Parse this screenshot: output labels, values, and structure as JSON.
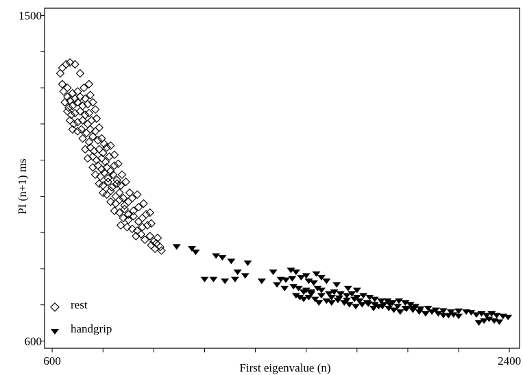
{
  "chart_data": {
    "type": "scatter",
    "xlabel": "First eigenvalue (n)",
    "ylabel": "PI (n+1) ms",
    "xlim": [
      570,
      2440
    ],
    "ylim": [
      580,
      1520
    ],
    "x_ticks": [
      600,
      800,
      1000,
      1200,
      1400,
      1600,
      1800,
      2000,
      2200,
      2400
    ],
    "y_ticks": [
      600,
      700,
      800,
      900,
      1000,
      1100,
      1200,
      1300,
      1400,
      1500
    ],
    "x_tick_labels": [
      {
        "value": 600,
        "label": "600"
      },
      {
        "value": 2400,
        "label": "2400"
      }
    ],
    "y_tick_labels": [
      {
        "value": 600,
        "label": "600"
      },
      {
        "value": 1500,
        "label": "1500"
      }
    ],
    "grid": false,
    "legend": "bottom-left",
    "series": [
      {
        "name": "rest",
        "marker": "open-diamond",
        "color": "#000000",
        "points": [
          [
            640,
            1355
          ],
          [
            655,
            1365
          ],
          [
            670,
            1370
          ],
          [
            690,
            1365
          ],
          [
            710,
            1340
          ],
          [
            632,
            1340
          ],
          [
            640,
            1310
          ],
          [
            660,
            1300
          ],
          [
            680,
            1285
          ],
          [
            700,
            1290
          ],
          [
            725,
            1300
          ],
          [
            745,
            1310
          ],
          [
            645,
            1290
          ],
          [
            660,
            1275
          ],
          [
            670,
            1265
          ],
          [
            690,
            1270
          ],
          [
            710,
            1275
          ],
          [
            730,
            1270
          ],
          [
            750,
            1280
          ],
          [
            650,
            1260
          ],
          [
            665,
            1245
          ],
          [
            680,
            1250
          ],
          [
            700,
            1260
          ],
          [
            720,
            1250
          ],
          [
            740,
            1255
          ],
          [
            760,
            1260
          ],
          [
            660,
            1235
          ],
          [
            675,
            1225
          ],
          [
            690,
            1230
          ],
          [
            710,
            1235
          ],
          [
            730,
            1225
          ],
          [
            745,
            1230
          ],
          [
            770,
            1240
          ],
          [
            670,
            1210
          ],
          [
            685,
            1200
          ],
          [
            700,
            1205
          ],
          [
            720,
            1210
          ],
          [
            740,
            1200
          ],
          [
            755,
            1210
          ],
          [
            775,
            1215
          ],
          [
            680,
            1185
          ],
          [
            700,
            1180
          ],
          [
            715,
            1185
          ],
          [
            735,
            1175
          ],
          [
            750,
            1185
          ],
          [
            770,
            1180
          ],
          [
            785,
            1190
          ],
          [
            720,
            1160
          ],
          [
            745,
            1150
          ],
          [
            760,
            1165
          ],
          [
            780,
            1155
          ],
          [
            795,
            1160
          ],
          [
            805,
            1145
          ],
          [
            730,
            1130
          ],
          [
            750,
            1135
          ],
          [
            765,
            1125
          ],
          [
            785,
            1130
          ],
          [
            800,
            1120
          ],
          [
            815,
            1135
          ],
          [
            830,
            1140
          ],
          [
            740,
            1105
          ],
          [
            760,
            1110
          ],
          [
            775,
            1100
          ],
          [
            795,
            1105
          ],
          [
            810,
            1095
          ],
          [
            825,
            1110
          ],
          [
            845,
            1115
          ],
          [
            760,
            1080
          ],
          [
            780,
            1085
          ],
          [
            795,
            1075
          ],
          [
            815,
            1080
          ],
          [
            830,
            1070
          ],
          [
            845,
            1085
          ],
          [
            860,
            1090
          ],
          [
            770,
            1060
          ],
          [
            790,
            1055
          ],
          [
            805,
            1065
          ],
          [
            820,
            1050
          ],
          [
            840,
            1060
          ],
          [
            855,
            1045
          ],
          [
            875,
            1060
          ],
          [
            785,
            1035
          ],
          [
            800,
            1030
          ],
          [
            820,
            1040
          ],
          [
            835,
            1025
          ],
          [
            855,
            1035
          ],
          [
            870,
            1030
          ],
          [
            890,
            1040
          ],
          [
            800,
            1010
          ],
          [
            815,
            1005
          ],
          [
            830,
            1015
          ],
          [
            850,
            1000
          ],
          [
            865,
            1010
          ],
          [
            880,
            995
          ],
          [
            905,
            1010
          ],
          [
            830,
            985
          ],
          [
            850,
            980
          ],
          [
            865,
            990
          ],
          [
            885,
            975
          ],
          [
            900,
            985
          ],
          [
            915,
            995
          ],
          [
            935,
            1005
          ],
          [
            845,
            960
          ],
          [
            865,
            955
          ],
          [
            885,
            965
          ],
          [
            900,
            950
          ],
          [
            920,
            960
          ],
          [
            940,
            970
          ],
          [
            960,
            980
          ],
          [
            880,
            940
          ],
          [
            900,
            935
          ],
          [
            920,
            945
          ],
          [
            940,
            930
          ],
          [
            955,
            940
          ],
          [
            970,
            950
          ],
          [
            985,
            955
          ],
          [
            870,
            920
          ],
          [
            895,
            915
          ],
          [
            915,
            910
          ],
          [
            935,
            905
          ],
          [
            955,
            915
          ],
          [
            975,
            920
          ],
          [
            990,
            925
          ],
          [
            930,
            890
          ],
          [
            950,
            895
          ],
          [
            965,
            880
          ],
          [
            985,
            890
          ],
          [
            1000,
            875
          ],
          [
            1015,
            885
          ],
          [
            990,
            865
          ],
          [
            1005,
            855
          ],
          [
            1010,
            870
          ],
          [
            1025,
            860
          ],
          [
            1030,
            850
          ]
        ]
      },
      {
        "name": "handgrip",
        "marker": "filled-down-triangle",
        "color": "#000000",
        "points": [
          [
            1090,
            860
          ],
          [
            1150,
            855
          ],
          [
            1165,
            845
          ],
          [
            1245,
            835
          ],
          [
            1270,
            830
          ],
          [
            1305,
            820
          ],
          [
            1370,
            815
          ],
          [
            1330,
            790
          ],
          [
            1200,
            770
          ],
          [
            1235,
            770
          ],
          [
            1280,
            765
          ],
          [
            1320,
            770
          ],
          [
            1360,
            780
          ],
          [
            1425,
            765
          ],
          [
            1470,
            790
          ],
          [
            1540,
            795
          ],
          [
            1560,
            790
          ],
          [
            1600,
            780
          ],
          [
            1640,
            785
          ],
          [
            1660,
            775
          ],
          [
            1500,
            770
          ],
          [
            1520,
            768
          ],
          [
            1545,
            772
          ],
          [
            1580,
            775
          ],
          [
            1610,
            765
          ],
          [
            1630,
            760
          ],
          [
            1680,
            765
          ],
          [
            1720,
            755
          ],
          [
            1765,
            745
          ],
          [
            1800,
            740
          ],
          [
            1485,
            755
          ],
          [
            1515,
            745
          ],
          [
            1550,
            750
          ],
          [
            1570,
            745
          ],
          [
            1600,
            740
          ],
          [
            1620,
            735
          ],
          [
            1645,
            745
          ],
          [
            1660,
            740
          ],
          [
            1690,
            730
          ],
          [
            1710,
            735
          ],
          [
            1735,
            730
          ],
          [
            1760,
            725
          ],
          [
            1780,
            730
          ],
          [
            1800,
            720
          ],
          [
            1825,
            725
          ],
          [
            1850,
            720
          ],
          [
            1870,
            715
          ],
          [
            1895,
            710
          ],
          [
            1920,
            710
          ],
          [
            1940,
            705
          ],
          [
            1965,
            710
          ],
          [
            1990,
            705
          ],
          [
            2010,
            700
          ],
          [
            2030,
            695
          ],
          [
            1575,
            720
          ],
          [
            1590,
            715
          ],
          [
            1610,
            720
          ],
          [
            1635,
            715
          ],
          [
            1650,
            705
          ],
          [
            1680,
            710
          ],
          [
            1700,
            705
          ],
          [
            1725,
            712
          ],
          [
            1750,
            705
          ],
          [
            1770,
            700
          ],
          [
            1795,
            695
          ],
          [
            1820,
            700
          ],
          [
            1845,
            702
          ],
          [
            1865,
            690
          ],
          [
            1885,
            695
          ],
          [
            1905,
            700
          ],
          [
            1925,
            690
          ],
          [
            1945,
            685
          ],
          [
            1970,
            680
          ],
          [
            1995,
            688
          ],
          [
            2020,
            685
          ],
          [
            2045,
            680
          ],
          [
            2070,
            675
          ],
          [
            2095,
            680
          ],
          [
            2120,
            675
          ],
          [
            2140,
            670
          ],
          [
            2160,
            670
          ],
          [
            2180,
            672
          ],
          [
            2200,
            668
          ],
          [
            1560,
            725
          ],
          [
            1590,
            735
          ],
          [
            1620,
            730
          ],
          [
            1660,
            725
          ],
          [
            1700,
            720
          ],
          [
            1730,
            718
          ],
          [
            1760,
            712
          ],
          [
            1790,
            715
          ],
          [
            1810,
            710
          ],
          [
            1840,
            705
          ],
          [
            1870,
            700
          ],
          [
            1900,
            695
          ],
          [
            1930,
            700
          ],
          [
            1960,
            695
          ],
          [
            1990,
            690
          ],
          [
            2020,
            690
          ],
          [
            2050,
            688
          ],
          [
            2080,
            690
          ],
          [
            2110,
            685
          ],
          [
            2140,
            683
          ],
          [
            2170,
            680
          ],
          [
            2200,
            682
          ],
          [
            2230,
            680
          ],
          [
            2250,
            678
          ],
          [
            2270,
            672
          ],
          [
            2290,
            675
          ],
          [
            2310,
            670
          ],
          [
            2330,
            675
          ],
          [
            2350,
            670
          ],
          [
            2375,
            668
          ],
          [
            2395,
            665
          ],
          [
            2280,
            650
          ],
          [
            2300,
            655
          ],
          [
            2320,
            660
          ],
          [
            2340,
            655
          ],
          [
            2360,
            652
          ]
        ]
      }
    ]
  }
}
